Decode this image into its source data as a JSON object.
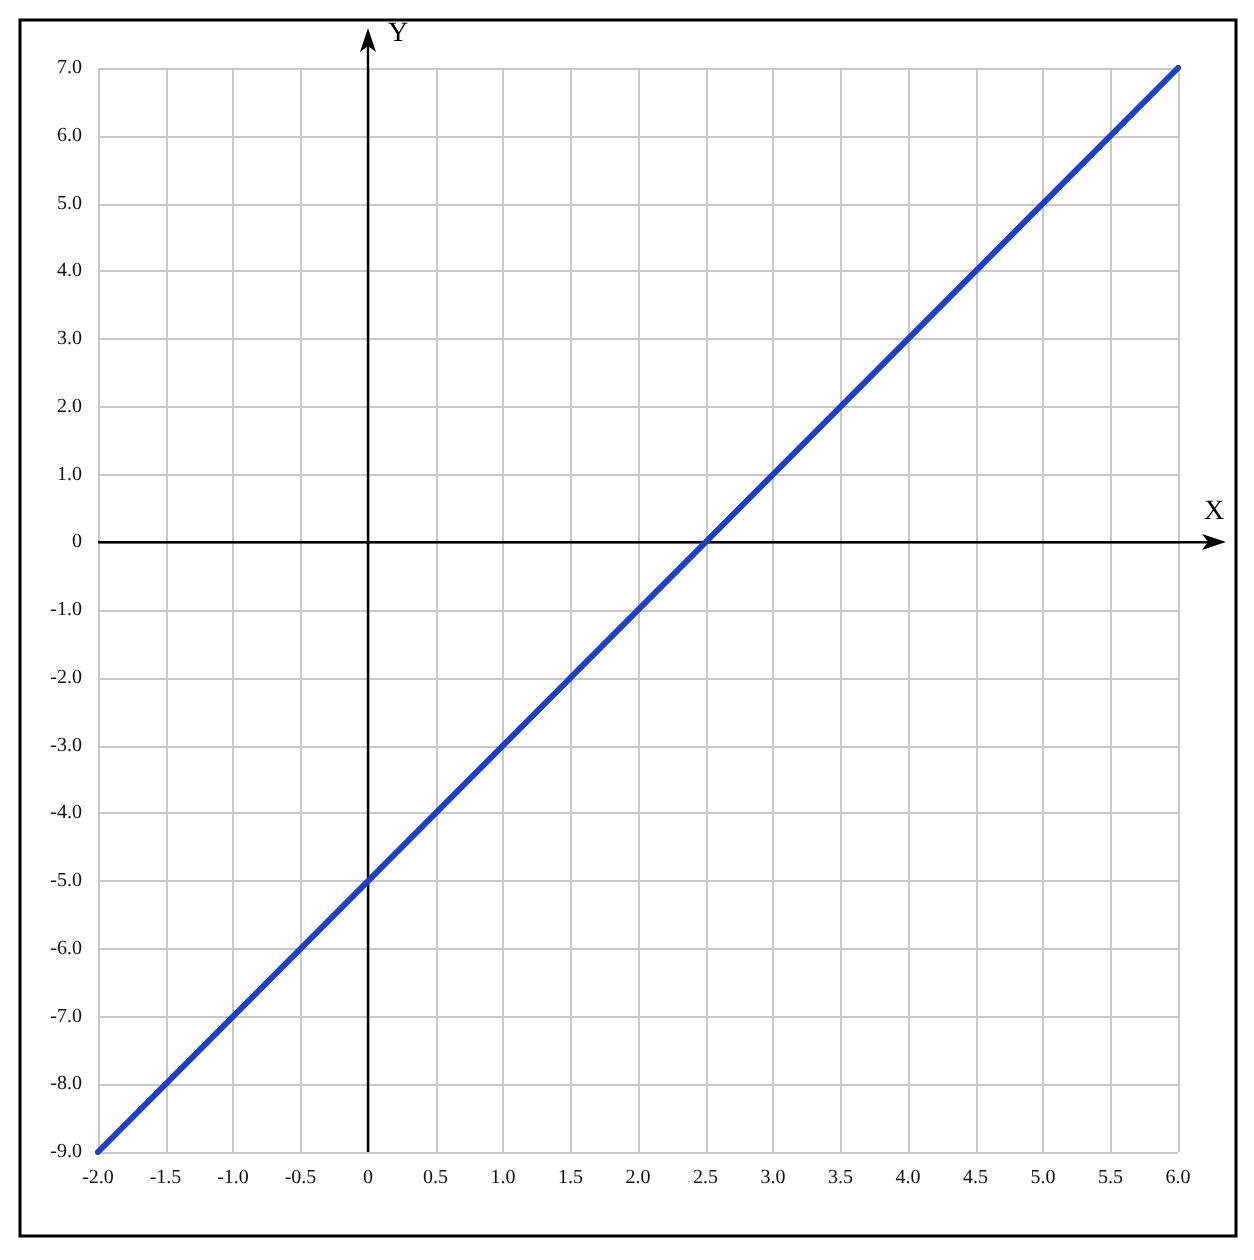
{
  "chart_data": {
    "type": "line",
    "xlabel": "X",
    "ylabel": "Y",
    "x": [
      -2,
      6
    ],
    "series": [
      {
        "color": "#1f3fc4",
        "values": [
          -9,
          7
        ]
      }
    ],
    "xlim": [
      -2,
      6
    ],
    "ylim": [
      -9,
      7
    ],
    "xticks": [
      {
        "value": -2,
        "label": "-2.0"
      },
      -1.5,
      {
        "value": -1,
        "label": "-1.0"
      },
      -0.5,
      0,
      0.5,
      {
        "value": 1,
        "label": "1.0"
      },
      1.5,
      {
        "value": 2,
        "label": "2.0"
      },
      2.5,
      {
        "value": 3,
        "label": "3.0"
      },
      3.5,
      {
        "value": 4,
        "label": "4.0"
      },
      4.5,
      {
        "value": 5,
        "label": "5.0"
      },
      5.5,
      {
        "value": 6,
        "label": "6.0"
      }
    ],
    "yticks": [
      {
        "value": -9,
        "label": "-9.0"
      },
      {
        "value": -8,
        "label": "-8.0"
      },
      {
        "value": -7,
        "label": "-7.0"
      },
      {
        "value": -6,
        "label": "-6.0"
      },
      {
        "value": -5,
        "label": "-5.0"
      },
      {
        "value": -4,
        "label": "-4.0"
      },
      {
        "value": -3,
        "label": "-3.0"
      },
      {
        "value": -2,
        "label": "-2.0"
      },
      {
        "value": -1,
        "label": "-1.0"
      },
      0,
      {
        "value": 1,
        "label": "1.0"
      },
      {
        "value": 2,
        "label": "2.0"
      },
      {
        "value": 3,
        "label": "3.0"
      },
      {
        "value": 4,
        "label": "4.0"
      },
      {
        "value": 5,
        "label": "5.0"
      },
      {
        "value": 6,
        "label": "6.0"
      },
      {
        "value": 7,
        "label": "7.0"
      }
    ],
    "grid": true,
    "marker": "none",
    "line_style": "solid"
  }
}
